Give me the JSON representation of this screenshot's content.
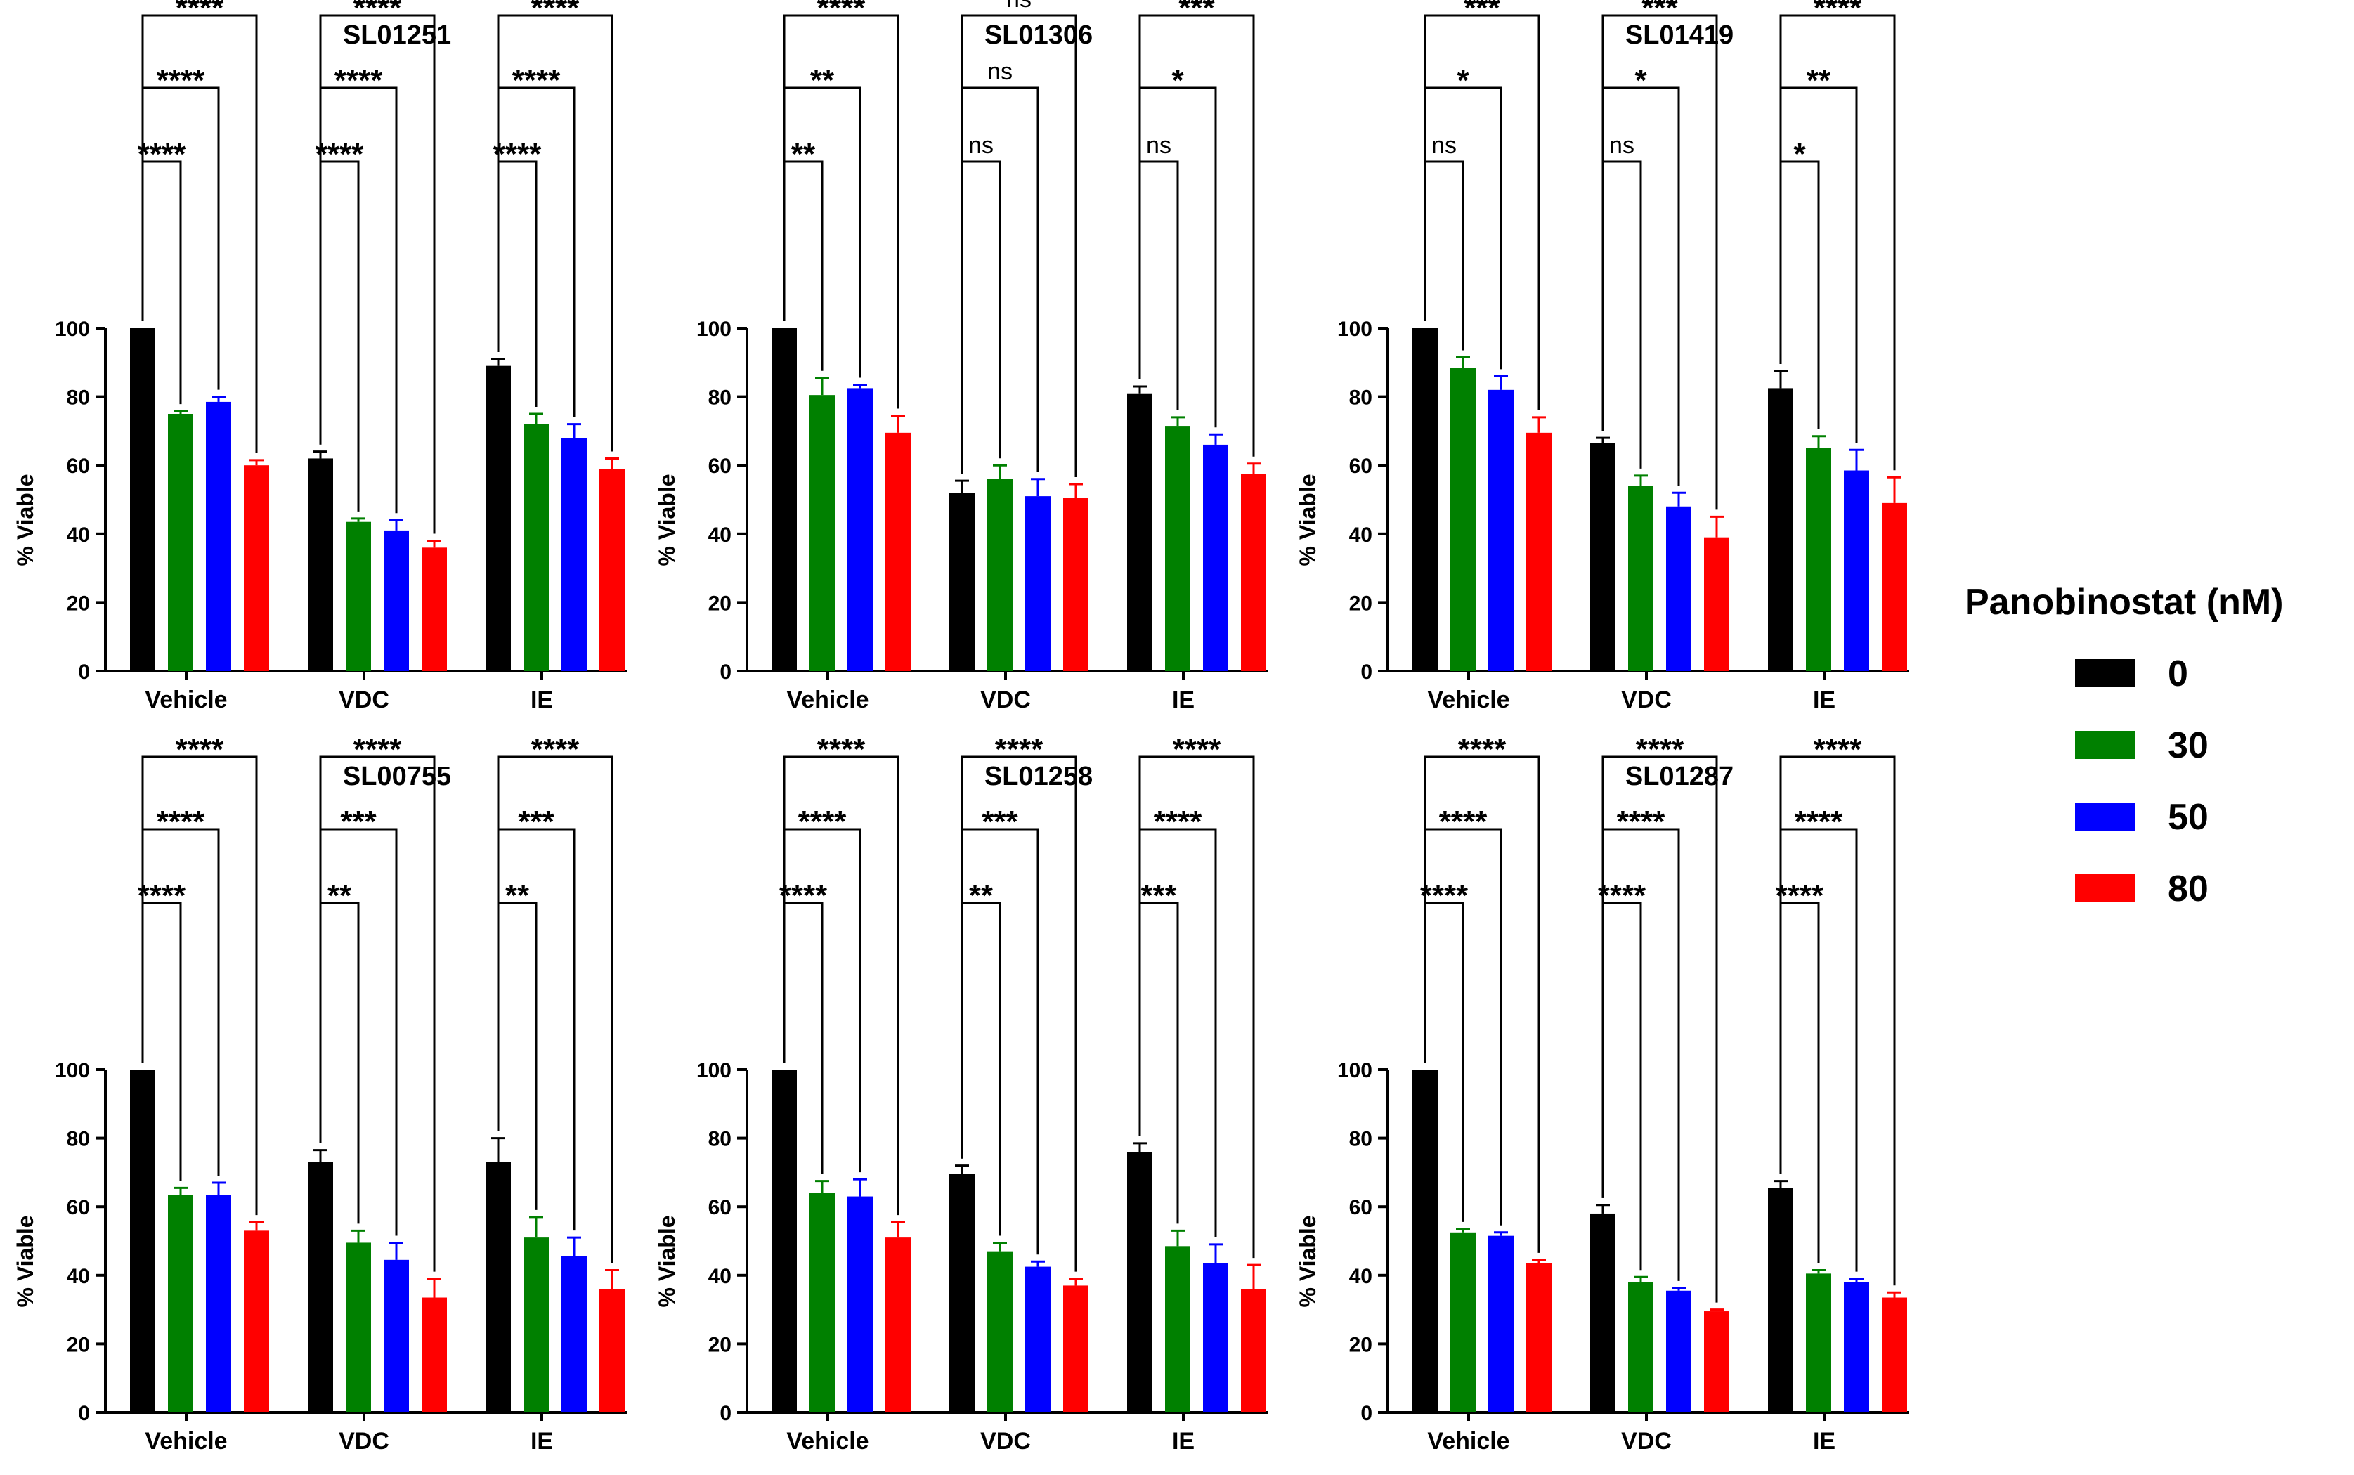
{
  "legend": {
    "title": "Panobinostat (nM)",
    "entries": [
      {
        "label": "0",
        "color": "#000000"
      },
      {
        "label": "30",
        "color": "#008000"
      },
      {
        "label": "50",
        "color": "#0000FF"
      },
      {
        "label": "80",
        "color": "#FF0000"
      }
    ]
  },
  "chart_data": [
    {
      "type": "bar",
      "title": "SL01251",
      "ylabel": "% Viable",
      "ylim": [
        0,
        100
      ],
      "yticks": [
        "0",
        "20",
        "40",
        "60",
        "80",
        "100"
      ],
      "categories": [
        "Vehicle",
        "VDC",
        "IE"
      ],
      "series": [
        {
          "name": "0",
          "values": [
            100,
            62,
            89
          ],
          "errors": [
            0,
            2,
            2
          ]
        },
        {
          "name": "30",
          "values": [
            75,
            43.5,
            72
          ],
          "errors": [
            0.8,
            1,
            3
          ]
        },
        {
          "name": "50",
          "values": [
            78.5,
            41,
            68
          ],
          "errors": [
            1.5,
            3,
            4
          ]
        },
        {
          "name": "80",
          "values": [
            60,
            36,
            59
          ],
          "errors": [
            1.5,
            2,
            3
          ]
        }
      ],
      "significance": [
        [
          "****",
          "****",
          "****"
        ],
        [
          "****",
          "****",
          "****"
        ],
        [
          "****",
          "****",
          "****"
        ]
      ]
    },
    {
      "type": "bar",
      "title": "SL01306",
      "ylabel": "% Viable",
      "ylim": [
        0,
        100
      ],
      "yticks": [
        "0",
        "20",
        "40",
        "60",
        "80",
        "100"
      ],
      "categories": [
        "Vehicle",
        "VDC",
        "IE"
      ],
      "series": [
        {
          "name": "0",
          "values": [
            100,
            52,
            81
          ],
          "errors": [
            0,
            3.5,
            2
          ]
        },
        {
          "name": "30",
          "values": [
            80.5,
            56,
            71.5
          ],
          "errors": [
            5,
            4,
            2.5
          ]
        },
        {
          "name": "50",
          "values": [
            82.5,
            51,
            66
          ],
          "errors": [
            1,
            5,
            3
          ]
        },
        {
          "name": "80",
          "values": [
            69.5,
            50.5,
            57.5
          ],
          "errors": [
            5,
            4,
            3
          ]
        }
      ],
      "significance": [
        [
          "**",
          "**",
          "****"
        ],
        [
          "ns",
          "ns",
          "ns"
        ],
        [
          "ns",
          "*",
          "***"
        ]
      ]
    },
    {
      "type": "bar",
      "title": "SL01419",
      "ylabel": "% Viable",
      "ylim": [
        0,
        100
      ],
      "yticks": [
        "0",
        "20",
        "40",
        "60",
        "80",
        "100"
      ],
      "categories": [
        "Vehicle",
        "VDC",
        "IE"
      ],
      "series": [
        {
          "name": "0",
          "values": [
            100,
            66.5,
            82.5
          ],
          "errors": [
            0,
            1.5,
            5
          ]
        },
        {
          "name": "30",
          "values": [
            88.5,
            54,
            65
          ],
          "errors": [
            3,
            3,
            3.5
          ]
        },
        {
          "name": "50",
          "values": [
            82,
            48,
            58.5
          ],
          "errors": [
            4,
            4,
            6
          ]
        },
        {
          "name": "80",
          "values": [
            69.5,
            39,
            49
          ],
          "errors": [
            4.5,
            6,
            7.5
          ]
        }
      ],
      "significance": [
        [
          "ns",
          "*",
          "***"
        ],
        [
          "ns",
          "*",
          "***"
        ],
        [
          "*",
          "**",
          "****"
        ]
      ]
    },
    {
      "type": "bar",
      "title": "SL00755",
      "ylabel": "% Viable",
      "ylim": [
        0,
        100
      ],
      "yticks": [
        "0",
        "20",
        "40",
        "60",
        "80",
        "100"
      ],
      "categories": [
        "Vehicle",
        "VDC",
        "IE"
      ],
      "series": [
        {
          "name": "0",
          "values": [
            100,
            73,
            73
          ],
          "errors": [
            0,
            3.5,
            7
          ]
        },
        {
          "name": "30",
          "values": [
            63.5,
            49.5,
            51
          ],
          "errors": [
            2,
            3.5,
            6
          ]
        },
        {
          "name": "50",
          "values": [
            63.5,
            44.5,
            45.5
          ],
          "errors": [
            3.5,
            5,
            5.5
          ]
        },
        {
          "name": "80",
          "values": [
            53,
            33.5,
            36
          ],
          "errors": [
            2.5,
            5.5,
            5.5
          ]
        }
      ],
      "significance": [
        [
          "****",
          "****",
          "****"
        ],
        [
          "**",
          "***",
          "****"
        ],
        [
          "**",
          "***",
          "****"
        ]
      ]
    },
    {
      "type": "bar",
      "title": "SL01258",
      "ylabel": "% Viable",
      "ylim": [
        0,
        100
      ],
      "yticks": [
        "0",
        "20",
        "40",
        "60",
        "80",
        "100"
      ],
      "categories": [
        "Vehicle",
        "VDC",
        "IE"
      ],
      "series": [
        {
          "name": "0",
          "values": [
            100,
            69.5,
            76
          ],
          "errors": [
            0,
            2.5,
            2.5
          ]
        },
        {
          "name": "30",
          "values": [
            64,
            47,
            48.5
          ],
          "errors": [
            3.5,
            2.5,
            4.5
          ]
        },
        {
          "name": "50",
          "values": [
            63,
            42.5,
            43.5
          ],
          "errors": [
            5,
            1.5,
            5.5
          ]
        },
        {
          "name": "80",
          "values": [
            51,
            37,
            36
          ],
          "errors": [
            4.5,
            2,
            7
          ]
        }
      ],
      "significance": [
        [
          "****",
          "****",
          "****"
        ],
        [
          "**",
          "***",
          "****"
        ],
        [
          "***",
          "****",
          "****"
        ]
      ]
    },
    {
      "type": "bar",
      "title": "SL01287",
      "ylabel": "% Viable",
      "ylim": [
        0,
        100
      ],
      "yticks": [
        "0",
        "20",
        "40",
        "60",
        "80",
        "100"
      ],
      "categories": [
        "Vehicle",
        "VDC",
        "IE"
      ],
      "series": [
        {
          "name": "0",
          "values": [
            100,
            58,
            65.5
          ],
          "errors": [
            0,
            2.5,
            2
          ]
        },
        {
          "name": "30",
          "values": [
            52.5,
            38,
            40.5
          ],
          "errors": [
            1,
            1.5,
            1
          ]
        },
        {
          "name": "50",
          "values": [
            51.5,
            35.5,
            38
          ],
          "errors": [
            1,
            0.8,
            1
          ]
        },
        {
          "name": "80",
          "values": [
            43.5,
            29.5,
            33.5
          ],
          "errors": [
            1,
            0.5,
            1.5
          ]
        }
      ],
      "significance": [
        [
          "****",
          "****",
          "****"
        ],
        [
          "****",
          "****",
          "****"
        ],
        [
          "****",
          "****",
          "****"
        ]
      ]
    }
  ]
}
